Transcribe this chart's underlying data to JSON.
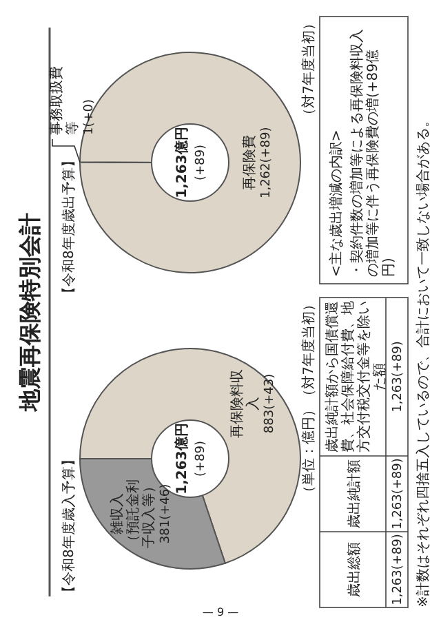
{
  "chart_data": [
    {
      "type": "donut",
      "title": "地震再保険特別会計",
      "subtitle": "【令和8年度歳入予算】",
      "categories": [
        "再保険料収入",
        "雑収入（預託金利子収入等）"
      ],
      "values": [
        883,
        381
      ],
      "colors": [
        "#ddd6c8",
        "#999999"
      ],
      "value_labels": [
        "883(+43)",
        "381(+46)"
      ],
      "annotations": [
        "1,263億円",
        "(+89)",
        "（単位：億円）（対7年度当初）",
        "歳出総額",
        "歳出純計額",
        "歳出純計額から国債償還費、社会保障給付費、地方交付税交付金等を除いた額",
        "1,263(+89)",
        "1,263(+89)",
        "1,263(+89)",
        "※計数はそれぞれ四捨五入しているので、合計において一致しない場合がある。",
        "— 9 —"
      ]
    },
    {
      "type": "donut",
      "title": "【令和8年度歳出予算】",
      "categories": [
        "事務取扱費等",
        "再保険費"
      ],
      "values": [
        1,
        1262
      ],
      "colors": [
        "#ddd6c8",
        "#ddd6c8"
      ],
      "value_labels": [
        "1(+0)",
        "1,262(+89)"
      ],
      "annotations": [
        "1,263億円",
        "(+89)",
        "（対7年度当初）",
        "<主な歳出増減の内訳>",
        "・契約件数の増加等による再保険料収入の増加等に伴う再保険費の増(+89億円)"
      ]
    }
  ]
}
